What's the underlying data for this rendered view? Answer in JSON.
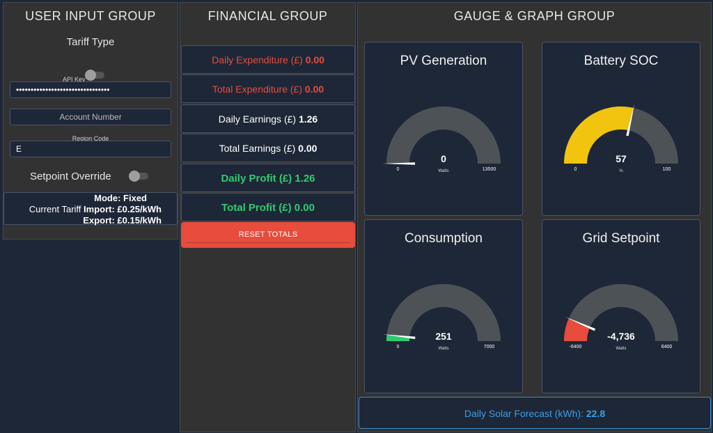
{
  "user_group": {
    "title": "USER INPUT GROUP",
    "tariff_type_label": "Tariff Type",
    "api_key_label": "API Key",
    "api_key_value": "••••••••••••••••••••••••••••••••",
    "account_number_placeholder": "Account Number",
    "region_code_label": "Region Code",
    "region_code_value": "E",
    "setpoint_override_label": "Setpoint Override",
    "mode_text": "Mode: Fixed",
    "current_tariff_label": "Current Tariff ",
    "import_text": "Import: £0.25/kWh",
    "export_text": "Export: £0.15/kWh"
  },
  "financial_group": {
    "title": "FINANCIAL GROUP",
    "daily_expenditure_label": "Daily Expenditure (£) ",
    "daily_expenditure_value": "0.00",
    "total_expenditure_label": "Total Expenditure (£) ",
    "total_expenditure_value": "0.00",
    "daily_earnings_label": "Daily Earnings (£) ",
    "daily_earnings_value": "1.26",
    "total_earnings_label": "Total Earnings (£) ",
    "total_earnings_value": "0.00",
    "daily_profit_label": "Daily Profit (£) ",
    "daily_profit_value": "1.26",
    "total_profit_label": "Total Profit (£) ",
    "total_profit_value": "0.00",
    "reset_button_label": "RESET TOTALS"
  },
  "gauge_group": {
    "title": "GAUGE & GRAPH GROUP",
    "gauges": [
      {
        "title": "PV Generation",
        "value": 0,
        "display": "0",
        "unit": "Watts",
        "min": 0,
        "max": 13500,
        "min_label": "0",
        "max_label": "13500",
        "color": "#2ecc71"
      },
      {
        "title": "Battery SOC",
        "value": 57,
        "display": "57",
        "unit": "%",
        "min": 0,
        "max": 100,
        "min_label": "0",
        "max_label": "100",
        "color": "#f1c40f"
      },
      {
        "title": "Consumption",
        "value": 251,
        "display": "251",
        "unit": "Watts",
        "min": 0,
        "max": 7000,
        "min_label": "0",
        "max_label": "7000",
        "color": "#2ecc71"
      },
      {
        "title": "Grid Setpoint",
        "value": -4736,
        "display": "-4,736",
        "unit": "Watts",
        "min": -6400,
        "max": 6400,
        "min_label": "-6400",
        "max_label": "6400",
        "color": "#e74c3c"
      }
    ],
    "forecast_label": "Daily Solar Forecast (kWh): ",
    "forecast_value": "22.8"
  },
  "colors": {
    "background": "#1e2737",
    "panel": "#323232",
    "gauge_track": "#4d5257",
    "red": "#e74c3c",
    "green": "#2ecc71",
    "blue": "#3a9ee6"
  }
}
